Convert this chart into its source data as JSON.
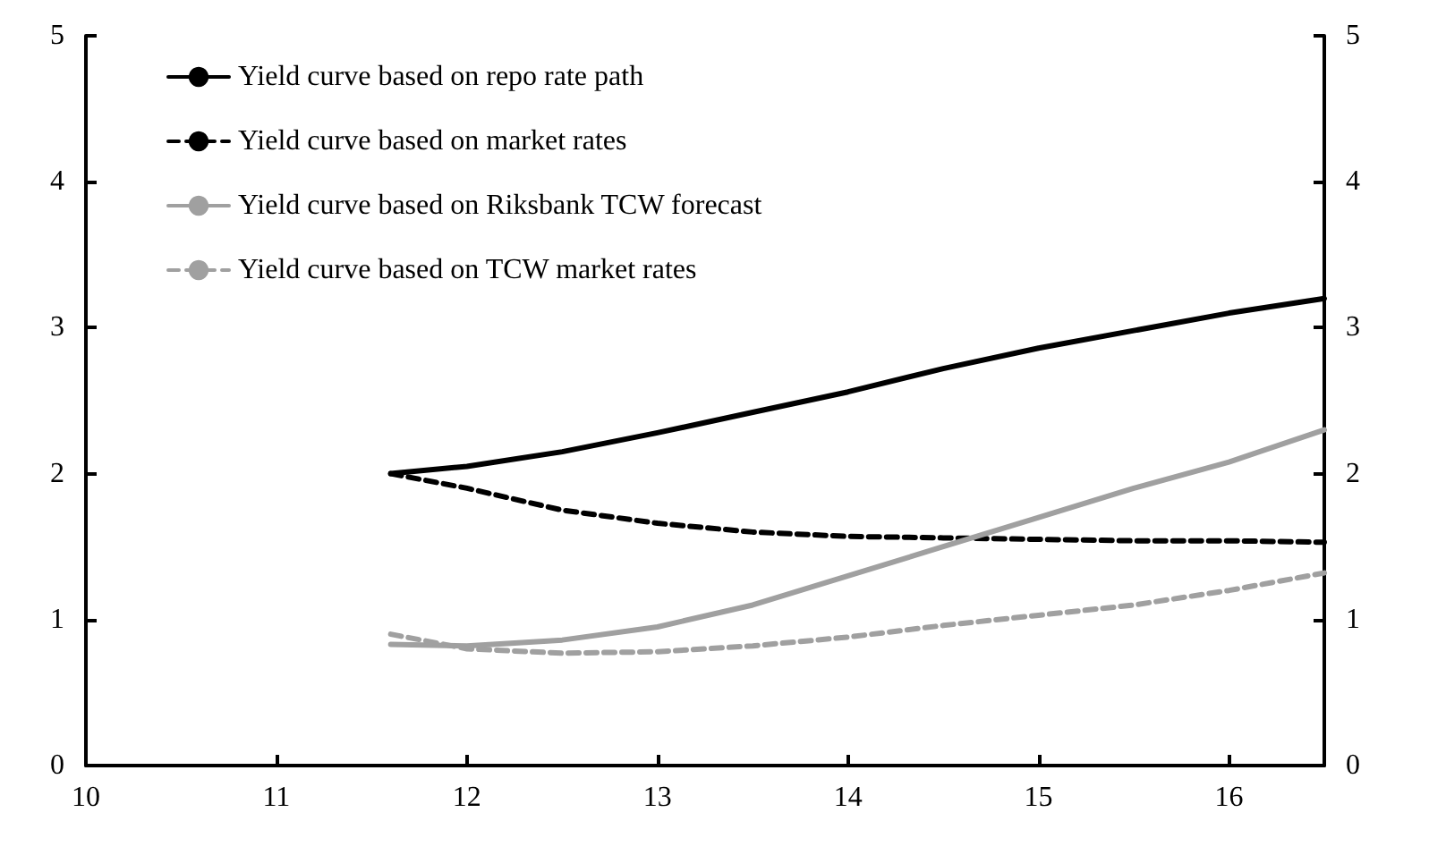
{
  "chart_data": {
    "type": "line",
    "x": [
      11.6,
      12,
      12.5,
      13,
      13.5,
      14,
      14.5,
      15,
      15.5,
      16,
      16.5
    ],
    "series": [
      {
        "name": "Yield curve based on repo rate path",
        "color": "#000000",
        "line_style": "solid",
        "values": [
          2.0,
          2.05,
          2.15,
          2.28,
          2.42,
          2.56,
          2.72,
          2.86,
          2.98,
          3.1,
          3.2
        ]
      },
      {
        "name": "Yield curve based on market rates",
        "color": "#000000",
        "line_style": "dashed",
        "values": [
          2.0,
          1.9,
          1.75,
          1.66,
          1.6,
          1.57,
          1.56,
          1.55,
          1.54,
          1.54,
          1.53
        ]
      },
      {
        "name": "Yield curve based on Riksbank TCW forecast",
        "color": "#a0a0a0",
        "line_style": "solid",
        "values": [
          0.83,
          0.82,
          0.86,
          0.95,
          1.1,
          1.3,
          1.5,
          1.7,
          1.9,
          2.08,
          2.3
        ]
      },
      {
        "name": "Yield curve based on TCW market rates",
        "color": "#a0a0a0",
        "line_style": "dashed",
        "values": [
          0.9,
          0.8,
          0.77,
          0.78,
          0.82,
          0.88,
          0.96,
          1.03,
          1.1,
          1.2,
          1.32
        ]
      }
    ],
    "xlim": [
      10,
      16.5
    ],
    "xticks": [
      10,
      11,
      12,
      13,
      14,
      15,
      16
    ],
    "ylim": [
      0,
      5
    ],
    "yticks": [
      0,
      1,
      2,
      3,
      4,
      5
    ],
    "y2lim": [
      0,
      5
    ],
    "y2ticks": [
      0,
      1,
      2,
      3,
      4,
      5
    ],
    "grid": false,
    "legend": "top left",
    "marker": "none"
  }
}
